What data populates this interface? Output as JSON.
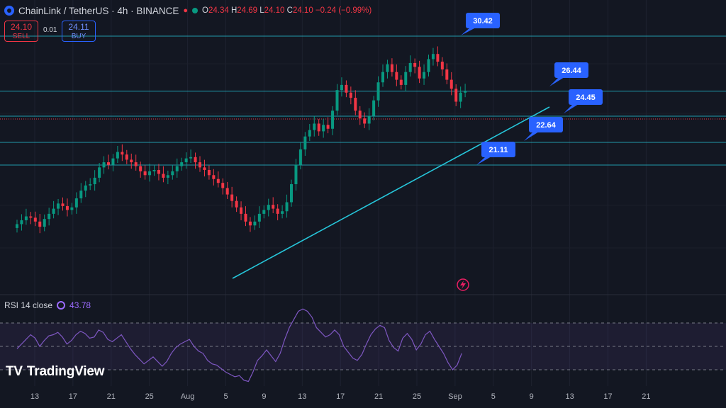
{
  "header": {
    "symbol": "ChainLink / TetherUS · 4h · BINANCE",
    "ohlc_open_label": "O",
    "ohlc_open": "24.34",
    "ohlc_high_label": "H",
    "ohlc_high": "24.69",
    "ohlc_low_label": "L",
    "ohlc_low": "24.10",
    "ohlc_close_label": "C",
    "ohlc_close": "24.10",
    "change": "−0.24 (−0.99%)"
  },
  "trade": {
    "sell_price": "24.10",
    "sell_label": "SELL",
    "spread": "0.01",
    "buy_price": "24.11",
    "buy_label": "BUY"
  },
  "rsi": {
    "label": "RSI 14 close",
    "value": "43.78"
  },
  "watermark": "TradingView",
  "colors": {
    "up": "#089981",
    "down": "#f23645",
    "level": "#26c6da",
    "callout": "#2962ff",
    "rsi": "#7e57c2",
    "bg": "#131722"
  },
  "chart_data": [
    {
      "type": "candlestick",
      "x_ticks": [
        "13",
        "17",
        "21",
        "25",
        "Aug",
        "5",
        "9",
        "13",
        "17",
        "21",
        "25",
        "Sep",
        "5",
        "9",
        "13",
        "17",
        "21"
      ],
      "horizontal_levels": [
        30.42,
        26.44,
        24.45,
        22.64,
        21.11
      ],
      "annotations": [
        "30.42",
        "26.44",
        "24.45",
        "22.64",
        "21.11"
      ],
      "trendline": {
        "from": {
          "x": "Aug 3",
          "y": 13.5
        },
        "to": {
          "x": "Sep 4",
          "y": 24.3
        }
      },
      "current_price": 24.1,
      "close_series": [
        13.8,
        14.1,
        14.4,
        14.3,
        14.0,
        13.6,
        14.2,
        14.6,
        15.0,
        15.4,
        15.2,
        14.9,
        15.1,
        15.8,
        16.4,
        16.8,
        16.9,
        17.4,
        18.2,
        18.6,
        18.4,
        18.9,
        19.4,
        19.2,
        18.8,
        18.6,
        18.3,
        17.9,
        17.6,
        17.9,
        18.0,
        17.7,
        17.4,
        17.6,
        17.9,
        18.3,
        18.6,
        18.9,
        19.0,
        18.6,
        18.2,
        18.0,
        17.6,
        17.3,
        17.0,
        16.6,
        16.1,
        15.6,
        15.1,
        14.6,
        14.0,
        13.7,
        14.0,
        14.6,
        14.9,
        15.3,
        15.0,
        14.6,
        14.8,
        15.5,
        16.9,
        18.4,
        19.6,
        20.6,
        21.1,
        21.6,
        21.0,
        21.5,
        21.2,
        22.6,
        24.2,
        24.6,
        24.0,
        23.6,
        22.6,
        22.0,
        21.6,
        22.2,
        23.4,
        24.8,
        25.6,
        26.2,
        25.6,
        25.0,
        24.6,
        25.6,
        26.3,
        26.0,
        25.1,
        25.6,
        26.6,
        27.0,
        26.4,
        25.8,
        25.0,
        24.3,
        23.3,
        24.0,
        24.1
      ],
      "rsi_range": [
        0,
        100
      ],
      "rsi_bands": [
        30,
        50,
        70
      ],
      "rsi_current": 43.78,
      "rsi_series": [
        48,
        52,
        56,
        60,
        57,
        50,
        55,
        59,
        60,
        62,
        58,
        52,
        55,
        60,
        63,
        61,
        57,
        58,
        64,
        62,
        56,
        54,
        57,
        60,
        54,
        48,
        43,
        39,
        35,
        38,
        41,
        37,
        33,
        37,
        44,
        49,
        52,
        54,
        56,
        50,
        46,
        44,
        38,
        35,
        34,
        31,
        28,
        26,
        24,
        25,
        21,
        20,
        28,
        38,
        42,
        47,
        42,
        37,
        44,
        56,
        66,
        73,
        80,
        82,
        80,
        75,
        66,
        62,
        58,
        60,
        64,
        60,
        50,
        45,
        40,
        38,
        43,
        52,
        60,
        65,
        68,
        66,
        55,
        49,
        46,
        57,
        61,
        56,
        47,
        52,
        60,
        63,
        56,
        50,
        44,
        36,
        30,
        34,
        44
      ]
    }
  ]
}
